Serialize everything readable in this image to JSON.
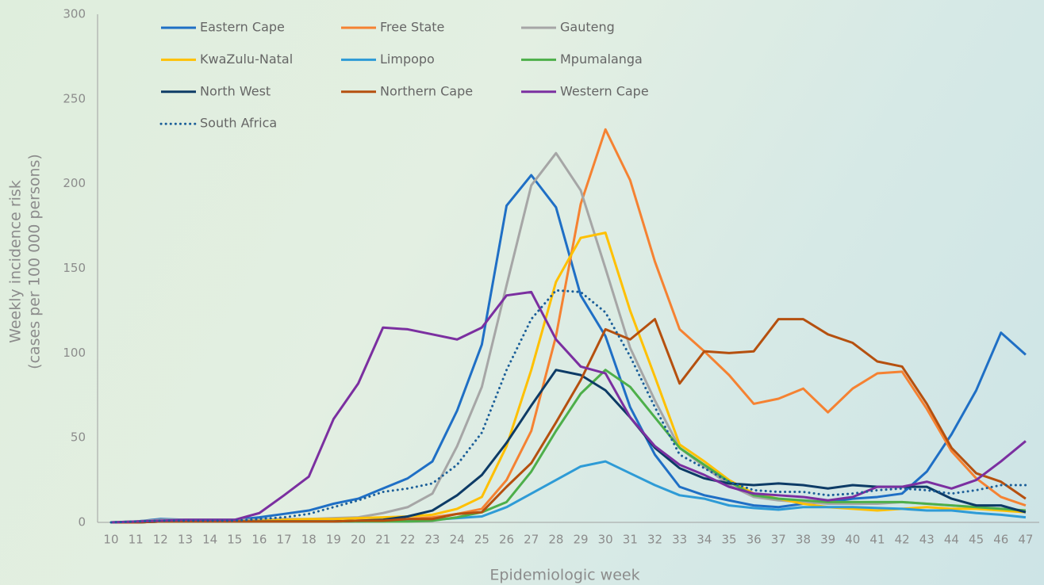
{
  "chart_data": {
    "type": "line",
    "x_label": "Epidemiologic week",
    "y_label": [
      "Weekly incidence risk",
      "(cases per 100 000 persons)"
    ],
    "categories": [
      "10",
      "11",
      "12",
      "13",
      "14",
      "15",
      "16",
      "17",
      "18",
      "19",
      "20",
      "21",
      "22",
      "23",
      "24",
      "25",
      "26",
      "27",
      "28",
      "29",
      "30",
      "31",
      "32",
      "33",
      "34",
      "35",
      "36",
      "37",
      "38",
      "39",
      "40",
      "41",
      "42",
      "43",
      "44",
      "45",
      "46",
      "47"
    ],
    "ylim": [
      0,
      300
    ],
    "yticks": [
      0,
      50,
      100,
      150,
      200,
      250,
      300
    ],
    "grid": false,
    "series": [
      {
        "name": "Eastern Cape",
        "color": "#1f6fc5",
        "values": [
          0,
          0.5,
          2,
          1.5,
          1.5,
          1.5,
          3,
          5,
          7,
          11,
          14,
          20,
          26,
          36,
          66,
          105,
          187,
          205,
          186,
          134,
          110,
          68,
          40,
          21,
          16,
          13,
          10,
          9,
          11,
          12,
          14,
          15,
          17,
          30,
          52,
          78,
          112,
          99
        ]
      },
      {
        "name": "Free State",
        "color": "#f58232",
        "values": [
          0,
          0,
          0.5,
          0.5,
          0.5,
          0.5,
          0.5,
          0.5,
          0.5,
          0.5,
          1,
          1.5,
          2,
          3,
          5,
          8,
          25,
          54,
          110,
          188,
          232,
          202,
          154,
          114,
          101,
          87,
          70,
          73,
          79,
          65,
          79,
          88,
          89,
          67,
          42,
          26,
          15,
          10
        ]
      },
      {
        "name": "Gauteng",
        "color": "#a6a6a6",
        "values": [
          0,
          0.5,
          1.5,
          1.5,
          1.5,
          1.5,
          1.5,
          2,
          2,
          2.5,
          3,
          5.5,
          9,
          17,
          45,
          80,
          140,
          199,
          218,
          196,
          150,
          103,
          72,
          44,
          33,
          22,
          15,
          13,
          12,
          11,
          11,
          11,
          12,
          11,
          10,
          9,
          8,
          7
        ]
      },
      {
        "name": "KwaZulu-Natal",
        "color": "#ffc000",
        "values": [
          0,
          0,
          0.5,
          0.5,
          0.5,
          0.5,
          1,
          1.5,
          2,
          2,
          2.5,
          3,
          3.5,
          4.5,
          8,
          15,
          45,
          90,
          142,
          168,
          171,
          125,
          86,
          46,
          36,
          25,
          17,
          14,
          11,
          9,
          8,
          7,
          8,
          9,
          8,
          8,
          7,
          6
        ]
      },
      {
        "name": "Limpopo",
        "color": "#2e9bd6",
        "values": [
          0,
          0,
          0.5,
          0.5,
          0.5,
          0.5,
          0.5,
          0.5,
          0.5,
          0.5,
          0.5,
          0.5,
          1,
          1.5,
          2.5,
          3.5,
          9,
          17,
          25,
          33,
          36,
          29,
          22,
          16,
          14,
          10,
          8.5,
          7.5,
          9,
          9,
          9,
          8.5,
          8,
          7,
          7,
          5.5,
          4.5,
          3
        ]
      },
      {
        "name": "Mpumalanga",
        "color": "#4daf4a",
        "values": [
          0,
          0,
          0.5,
          0.5,
          0.5,
          0.5,
          0.5,
          0.5,
          0.5,
          0.5,
          0.5,
          0.5,
          0.5,
          1,
          3,
          6,
          12,
          30,
          54,
          76,
          90,
          80,
          62,
          44,
          34,
          24,
          16,
          14,
          13,
          12,
          12,
          12,
          12,
          11,
          10,
          9,
          8,
          7
        ]
      },
      {
        "name": "North West",
        "color": "#0d3b66",
        "values": [
          0,
          0,
          0.5,
          0.5,
          0.5,
          0.5,
          0.5,
          0.5,
          0.5,
          0.5,
          1,
          1.5,
          3.5,
          7,
          16,
          28,
          47,
          69,
          90,
          87,
          78,
          62,
          44,
          32,
          26,
          23,
          22,
          23,
          22,
          20,
          22,
          21,
          21,
          21,
          14,
          10,
          10,
          6
        ]
      },
      {
        "name": "Northern Cape",
        "color": "#b5500f",
        "values": [
          0,
          0,
          0.5,
          0.5,
          0.5,
          0.5,
          0.5,
          0.5,
          0.5,
          0.5,
          1,
          1,
          2,
          2,
          5,
          6,
          21,
          35,
          59,
          84,
          114,
          108,
          120,
          82,
          101,
          100,
          101,
          120,
          120,
          111,
          106,
          95,
          92,
          70,
          44,
          29,
          24,
          14
        ]
      },
      {
        "name": "Western Cape",
        "color": "#7b2fa0",
        "values": [
          0,
          0.5,
          1,
          1.5,
          1.5,
          1.5,
          5.5,
          16,
          27,
          61,
          82,
          115,
          114,
          111,
          108,
          115,
          134,
          136,
          108,
          92,
          88,
          62,
          45,
          34,
          28,
          21,
          17,
          16,
          15,
          13,
          15,
          21,
          21,
          24,
          20,
          25,
          36,
          48
        ]
      },
      {
        "name": "South Africa",
        "color": "#1c5f99",
        "line_style": "dotted",
        "values": [
          0,
          0.5,
          1,
          1,
          1,
          1,
          2,
          3,
          5,
          9,
          13,
          18,
          20,
          23,
          34,
          53,
          90,
          120,
          137,
          136,
          124,
          98,
          68,
          40,
          32,
          24,
          19,
          18,
          18,
          16,
          17,
          19,
          20,
          19,
          17,
          19,
          22,
          22
        ]
      }
    ]
  }
}
